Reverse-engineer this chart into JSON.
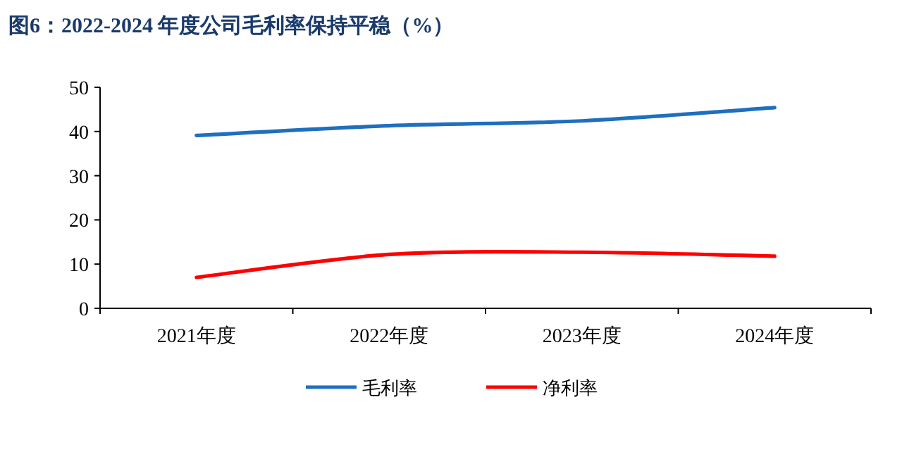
{
  "chart_data": {
    "type": "line",
    "title": "图6：2022-2024 年度公司毛利率保持平稳（%）",
    "categories": [
      "2021年度",
      "2022年度",
      "2023年度",
      "2024年度"
    ],
    "series": [
      {
        "name": "毛利率",
        "color": "#1f6fbf",
        "values": [
          39.1,
          41.3,
          42.4,
          45.4
        ]
      },
      {
        "name": "净利率",
        "color": "#ff0000",
        "values": [
          7.0,
          12.2,
          12.7,
          11.8
        ]
      }
    ],
    "ylim": [
      0,
      50
    ],
    "yticks": [
      0,
      10,
      20,
      30,
      40,
      50
    ],
    "grid": false,
    "legend": "bottom",
    "marker": "none",
    "line_style": "solid"
  }
}
